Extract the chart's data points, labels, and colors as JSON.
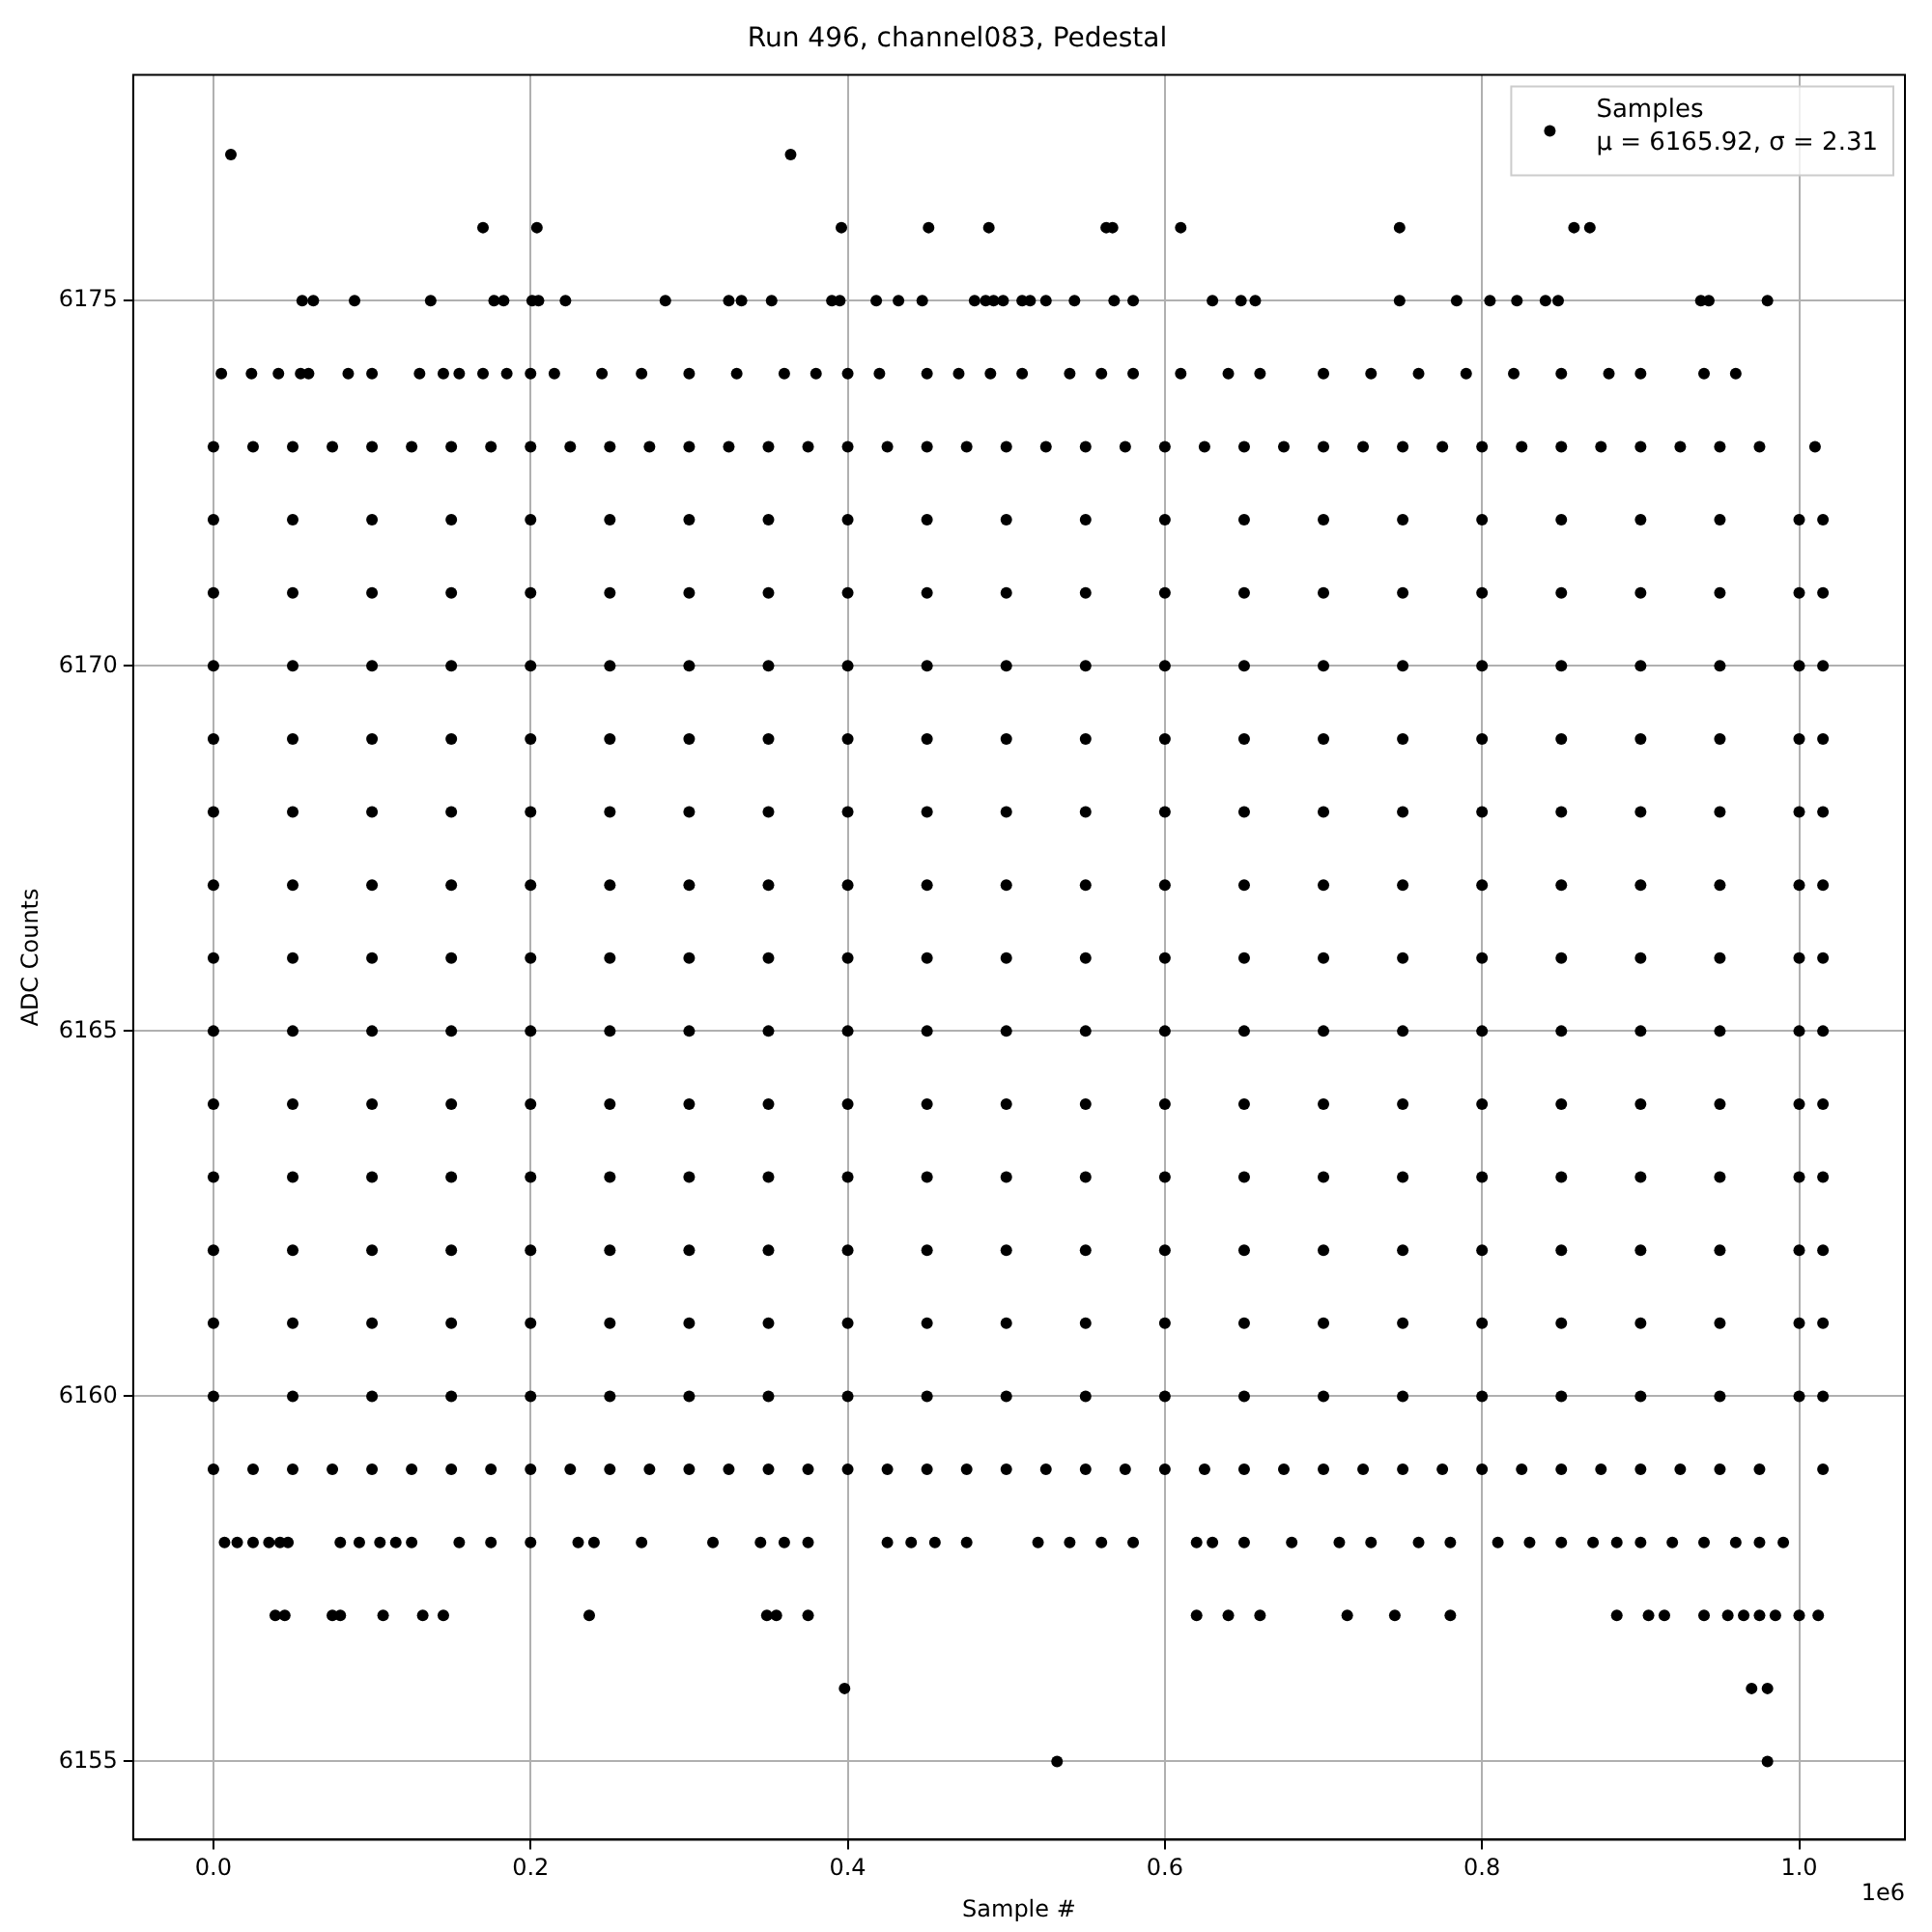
{
  "chart_data": {
    "type": "scatter",
    "title": "Run 496, channel083, Pedestal",
    "xlabel": "Sample #",
    "ylabel": "ADC Counts",
    "annotations": [
      "1e6"
    ],
    "xlim": [
      -0.0506,
      1.0667
    ],
    "ylim": [
      6153.93,
      6178.09
    ],
    "xticks": [
      {
        "value": 0,
        "label": "0.0"
      },
      0.2,
      0.4,
      0.6,
      0.8,
      {
        "value": 1,
        "label": "1.0"
      }
    ],
    "yticks": [
      6155,
      6160,
      6165,
      6170,
      6175
    ],
    "grid": true,
    "legend": "top right",
    "marker": "circle",
    "x": [
      0,
      0.05,
      0.1,
      0.15,
      0.2,
      0.25,
      0.3,
      0.35,
      0.4,
      0.45,
      0.5,
      0.55,
      0.6,
      0.65,
      0.7,
      0.75,
      0.8,
      0.85,
      0.9,
      0.95,
      1.0,
      1.015
    ],
    "series": [
      {
        "name": "Samples\nμ = 6165.92, σ = 2.31",
        "color": "#000000",
        "values": [
          6170,
          6170,
          6170,
          6170,
          6170,
          6170,
          6170,
          6170,
          6170,
          6170,
          6170,
          6170,
          6170,
          6170,
          6170,
          6170,
          6170,
          6170,
          6170,
          6170,
          6170,
          6170
        ]
      },
      {
        "color": "#000000",
        "values": [
          6160,
          6160,
          6160,
          6160,
          6160,
          6160,
          6160,
          6160,
          6160,
          6160,
          6160,
          6160,
          6160,
          6160,
          6160,
          6160,
          6160,
          6160,
          6160,
          6160,
          6160,
          6160
        ]
      },
      {
        "color": "#000000",
        "values": [
          6161,
          6161,
          6161,
          6161,
          6161,
          6161,
          6161,
          6161,
          6161,
          6161,
          6161,
          6161,
          6161,
          6161,
          6161,
          6161,
          6161,
          6161,
          6161,
          6161,
          6161,
          6161
        ]
      },
      {
        "color": "#000000",
        "values": [
          6162,
          6162,
          6162,
          6162,
          6162,
          6162,
          6162,
          6162,
          6162,
          6162,
          6162,
          6162,
          6162,
          6162,
          6162,
          6162,
          6162,
          6162,
          6162,
          6162,
          6162,
          6162
        ]
      },
      {
        "color": "#000000",
        "values": [
          6163,
          6163,
          6163,
          6163,
          6163,
          6163,
          6163,
          6163,
          6163,
          6163,
          6163,
          6163,
          6163,
          6163,
          6163,
          6163,
          6163,
          6163,
          6163,
          6163,
          6163,
          6163
        ]
      },
      {
        "color": "#000000",
        "values": [
          6164,
          6164,
          6164,
          6164,
          6164,
          6164,
          6164,
          6164,
          6164,
          6164,
          6164,
          6164,
          6164,
          6164,
          6164,
          6164,
          6164,
          6164,
          6164,
          6164,
          6164,
          6164
        ]
      },
      {
        "color": "#000000",
        "values": [
          6165,
          6165,
          6165,
          6165,
          6165,
          6165,
          6165,
          6165,
          6165,
          6165,
          6165,
          6165,
          6165,
          6165,
          6165,
          6165,
          6165,
          6165,
          6165,
          6165,
          6165,
          6165
        ]
      },
      {
        "color": "#000000",
        "values": [
          6166,
          6166,
          6166,
          6166,
          6166,
          6166,
          6166,
          6166,
          6166,
          6166,
          6166,
          6166,
          6166,
          6166,
          6166,
          6166,
          6166,
          6166,
          6166,
          6166,
          6166,
          6166
        ]
      },
      {
        "color": "#000000",
        "values": [
          6167,
          6167,
          6167,
          6167,
          6167,
          6167,
          6167,
          6167,
          6167,
          6167,
          6167,
          6167,
          6167,
          6167,
          6167,
          6167,
          6167,
          6167,
          6167,
          6167,
          6167,
          6167
        ]
      },
      {
        "color": "#000000",
        "values": [
          6168,
          6168,
          6168,
          6168,
          6168,
          6168,
          6168,
          6168,
          6168,
          6168,
          6168,
          6168,
          6168,
          6168,
          6168,
          6168,
          6168,
          6168,
          6168,
          6168,
          6168,
          6168
        ]
      },
      {
        "color": "#000000",
        "values": [
          6169,
          6169,
          6169,
          6169,
          6169,
          6169,
          6169,
          6169,
          6169,
          6169,
          6169,
          6169,
          6169,
          6169,
          6169,
          6169,
          6169,
          6169,
          6169,
          6169,
          6169,
          6169
        ]
      },
      {
        "color": "#000000",
        "values": [
          6171,
          6171,
          6171,
          6171,
          6171,
          6171,
          6171,
          6171,
          6171,
          6171,
          6171,
          6171,
          6171,
          6171,
          6171,
          6171,
          6171,
          6171,
          6171,
          6171,
          6171,
          6171
        ]
      },
      {
        "color": "#000000",
        "values": [
          6172,
          6172,
          6172,
          6172,
          6172,
          6172,
          6172,
          6172,
          6172,
          6172,
          6172,
          6172,
          6172,
          6172,
          6172,
          6172,
          6172,
          6172,
          6172,
          6172,
          6172,
          6172
        ]
      },
      {
        "color": "#000000",
        "x": [
          0,
          0.025,
          0.05,
          0.075,
          0.1,
          0.125,
          0.15,
          0.175,
          0.2,
          0.225,
          0.25,
          0.275,
          0.3,
          0.325,
          0.35,
          0.375,
          0.4,
          0.425,
          0.45,
          0.475,
          0.5,
          0.525,
          0.55,
          0.575,
          0.6,
          0.625,
          0.65,
          0.675,
          0.7,
          0.725,
          0.75,
          0.775,
          0.8,
          0.825,
          0.85,
          0.875,
          0.9,
          0.925,
          0.95,
          0.975,
          1.01
        ],
        "values": [
          6173,
          6173,
          6173,
          6173,
          6173,
          6173,
          6173,
          6173,
          6173,
          6173,
          6173,
          6173,
          6173,
          6173,
          6173,
          6173,
          6173,
          6173,
          6173,
          6173,
          6173,
          6173,
          6173,
          6173,
          6173,
          6173,
          6173,
          6173,
          6173,
          6173,
          6173,
          6173,
          6173,
          6173,
          6173,
          6173,
          6173,
          6173,
          6173,
          6173,
          6173
        ]
      },
      {
        "color": "#000000",
        "x": [
          0,
          0.025,
          0.05,
          0.075,
          0.1,
          0.125,
          0.15,
          0.175,
          0.2,
          0.225,
          0.25,
          0.275,
          0.3,
          0.325,
          0.35,
          0.375,
          0.4,
          0.425,
          0.45,
          0.475,
          0.5,
          0.525,
          0.55,
          0.575,
          0.6,
          0.625,
          0.65,
          0.675,
          0.7,
          0.725,
          0.75,
          0.775,
          0.8,
          0.825,
          0.85,
          0.875,
          0.9,
          0.925,
          0.95,
          0.975,
          1.015
        ],
        "values": [
          6159,
          6159,
          6159,
          6159,
          6159,
          6159,
          6159,
          6159,
          6159,
          6159,
          6159,
          6159,
          6159,
          6159,
          6159,
          6159,
          6159,
          6159,
          6159,
          6159,
          6159,
          6159,
          6159,
          6159,
          6159,
          6159,
          6159,
          6159,
          6159,
          6159,
          6159,
          6159,
          6159,
          6159,
          6159,
          6159,
          6159,
          6159,
          6159,
          6159,
          6159
        ]
      },
      {
        "color": "#000000",
        "x": [
          0.005,
          0.024,
          0.041,
          0.055,
          0.06,
          0.085,
          0.1,
          0.13,
          0.145,
          0.155,
          0.17,
          0.185,
          0.2,
          0.215,
          0.245,
          0.27,
          0.3,
          0.33,
          0.36,
          0.38,
          0.4,
          0.42,
          0.45,
          0.47,
          0.49,
          0.51,
          0.54,
          0.56,
          0.58,
          0.61,
          0.64,
          0.66,
          0.7,
          0.73,
          0.76,
          0.79,
          0.82,
          0.85,
          0.88,
          0.9,
          0.94,
          0.96
        ],
        "values": [
          6174,
          6174,
          6174,
          6174,
          6174,
          6174,
          6174,
          6174,
          6174,
          6174,
          6174,
          6174,
          6174,
          6174,
          6174,
          6174,
          6174,
          6174,
          6174,
          6174,
          6174,
          6174,
          6174,
          6174,
          6174,
          6174,
          6174,
          6174,
          6174,
          6174,
          6174,
          6174,
          6174,
          6174,
          6174,
          6174,
          6174,
          6174,
          6174,
          6174,
          6174,
          6174
        ]
      },
      {
        "color": "#000000",
        "x": [
          0.056,
          0.063,
          0.089,
          0.137,
          0.177,
          0.183,
          0.201,
          0.205,
          0.222,
          0.285,
          0.325,
          0.333,
          0.352,
          0.39,
          0.395,
          0.418,
          0.432,
          0.447,
          0.48,
          0.487,
          0.492,
          0.498,
          0.51,
          0.515,
          0.525,
          0.543,
          0.568,
          0.58,
          0.63,
          0.648,
          0.657,
          0.748,
          0.784,
          0.805,
          0.822,
          0.84,
          0.848,
          0.938,
          0.943,
          0.98
        ],
        "values": [
          6175,
          6175,
          6175,
          6175,
          6175,
          6175,
          6175,
          6175,
          6175,
          6175,
          6175,
          6175,
          6175,
          6175,
          6175,
          6175,
          6175,
          6175,
          6175,
          6175,
          6175,
          6175,
          6175,
          6175,
          6175,
          6175,
          6175,
          6175,
          6175,
          6175,
          6175,
          6175,
          6175,
          6175,
          6175,
          6175,
          6175,
          6175,
          6175,
          6175
        ]
      },
      {
        "color": "#000000",
        "x": [
          0.17,
          0.204,
          0.396,
          0.451,
          0.489,
          0.563,
          0.567,
          0.61,
          0.748,
          0.858,
          0.868
        ],
        "values": [
          6176,
          6176,
          6176,
          6176,
          6176,
          6176,
          6176,
          6176,
          6176,
          6176,
          6176
        ]
      },
      {
        "color": "#000000",
        "x": [
          0.011,
          0.364
        ],
        "values": [
          6177,
          6177
        ]
      },
      {
        "color": "#000000",
        "x": [
          0.007,
          0.015,
          0.025,
          0.035,
          0.042,
          0.047,
          0.08,
          0.092,
          0.105,
          0.115,
          0.125,
          0.155,
          0.175,
          0.2,
          0.23,
          0.24,
          0.27,
          0.315,
          0.345,
          0.36,
          0.375,
          0.425,
          0.44,
          0.455,
          0.475,
          0.52,
          0.54,
          0.56,
          0.58,
          0.62,
          0.63,
          0.65,
          0.68,
          0.71,
          0.73,
          0.76,
          0.78,
          0.81,
          0.83,
          0.85,
          0.87,
          0.885,
          0.9,
          0.92,
          0.94,
          0.96,
          0.975,
          0.99
        ],
        "values": [
          6158,
          6158,
          6158,
          6158,
          6158,
          6158,
          6158,
          6158,
          6158,
          6158,
          6158,
          6158,
          6158,
          6158,
          6158,
          6158,
          6158,
          6158,
          6158,
          6158,
          6158,
          6158,
          6158,
          6158,
          6158,
          6158,
          6158,
          6158,
          6158,
          6158,
          6158,
          6158,
          6158,
          6158,
          6158,
          6158,
          6158,
          6158,
          6158,
          6158,
          6158,
          6158,
          6158,
          6158,
          6158,
          6158,
          6158,
          6158
        ]
      },
      {
        "color": "#000000",
        "x": [
          0.039,
          0.045,
          0.075,
          0.08,
          0.107,
          0.132,
          0.145,
          0.237,
          0.349,
          0.355,
          0.375,
          0.62,
          0.64,
          0.66,
          0.715,
          0.745,
          0.78,
          0.885,
          0.905,
          0.915,
          0.94,
          0.955,
          0.965,
          0.975,
          0.985,
          1.0,
          1.012
        ],
        "values": [
          6157,
          6157,
          6157,
          6157,
          6157,
          6157,
          6157,
          6157,
          6157,
          6157,
          6157,
          6157,
          6157,
          6157,
          6157,
          6157,
          6157,
          6157,
          6157,
          6157,
          6157,
          6157,
          6157,
          6157,
          6157,
          6157,
          6157
        ]
      },
      {
        "color": "#000000",
        "x": [
          0.398,
          0.97,
          0.98
        ],
        "values": [
          6156,
          6156,
          6156
        ]
      },
      {
        "color": "#000000",
        "x": [
          0.532,
          0.98
        ],
        "values": [
          6155,
          6155
        ]
      }
    ]
  }
}
